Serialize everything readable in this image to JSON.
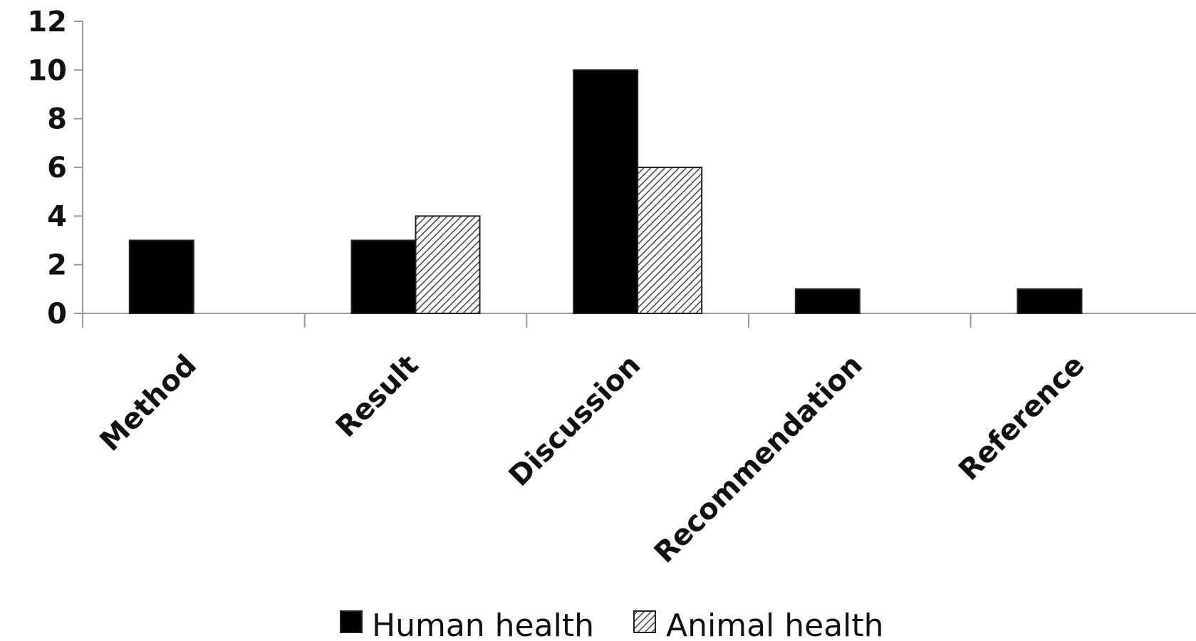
{
  "chart_data": {
    "type": "bar",
    "title": "",
    "xlabel": "",
    "ylabel": "",
    "categories": [
      "Method",
      "Result",
      "Discussion",
      "Recommendation",
      "Reference"
    ],
    "series": [
      {
        "name": "Human health",
        "values": [
          3,
          3,
          10,
          1,
          1
        ],
        "fill": "#000000"
      },
      {
        "name": "Animal health",
        "values": [
          0,
          4,
          6,
          0,
          0
        ],
        "fill": "hatch"
      }
    ],
    "y_ticks": [
      "0",
      "2",
      "4",
      "6",
      "8",
      "10",
      "12"
    ],
    "ylim": [
      0,
      12
    ],
    "grid": false,
    "legend_position": "bottom"
  }
}
